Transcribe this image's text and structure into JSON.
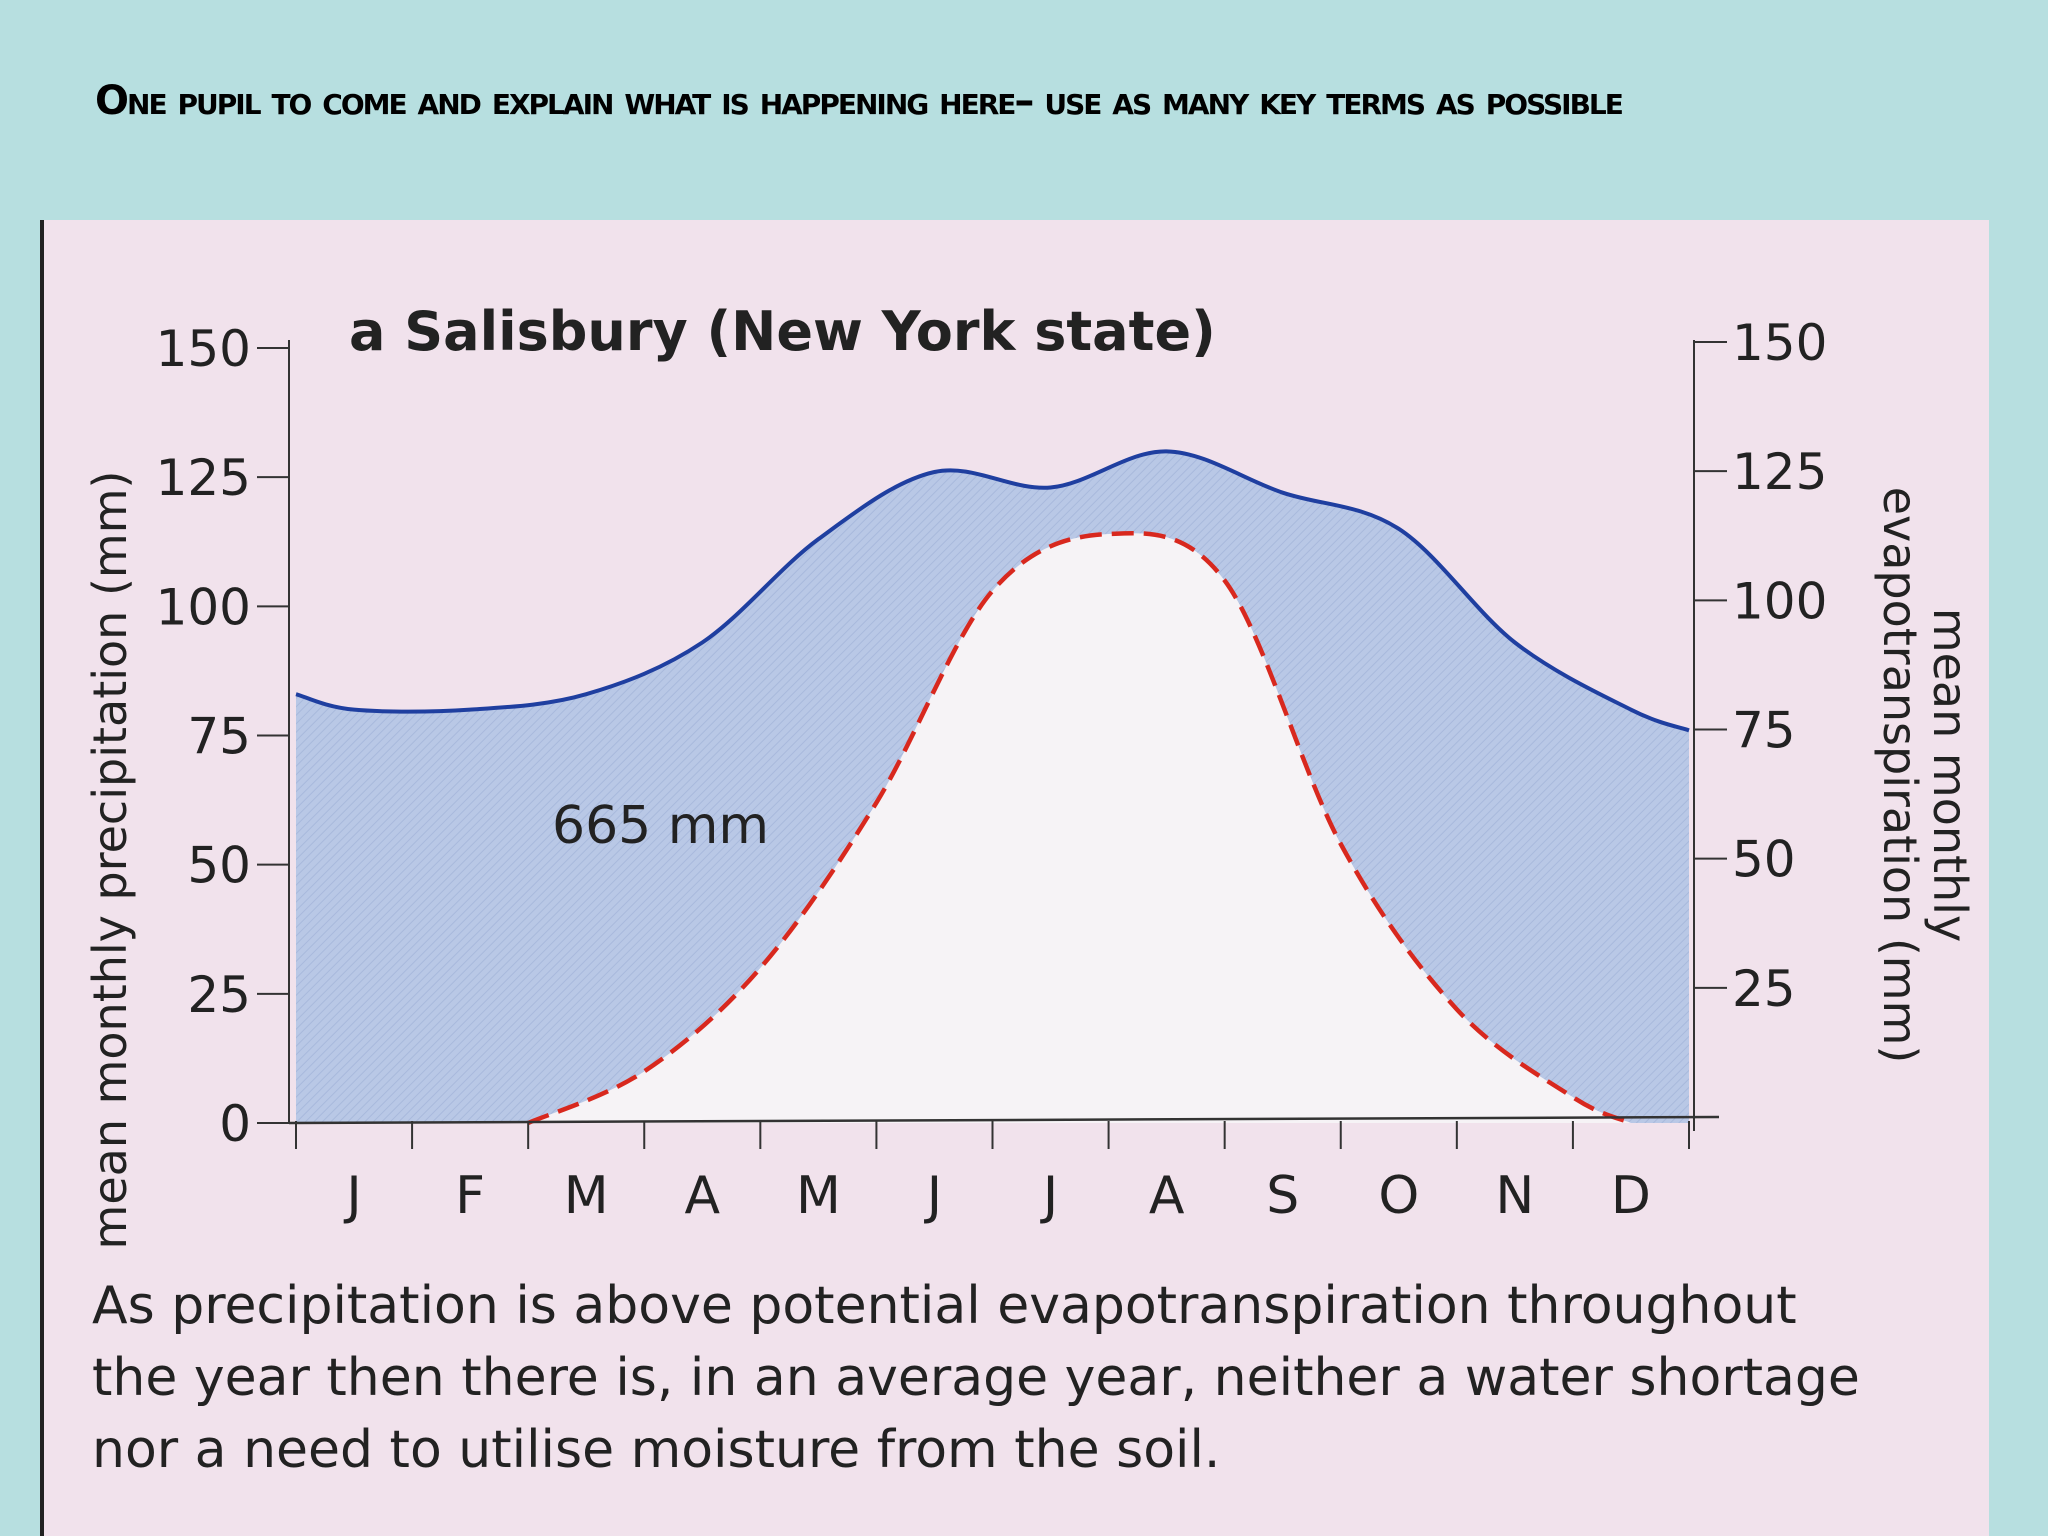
{
  "slide": {
    "heading": "One pupil to come and explain what is happening here– use as many key terms as possible"
  },
  "chart_data": {
    "type": "area",
    "title": "a Salisbury (New York state)",
    "ylabel_left": "mean monthly precipitation (mm)",
    "ylabel_right": "mean monthly evapotranspiration (mm)",
    "yticks_left": [
      "0",
      "25",
      "50",
      "75",
      "100",
      "125",
      "150"
    ],
    "yticks_right": [
      "25",
      "50",
      "75",
      "100",
      "125",
      "150"
    ],
    "ylim": [
      0,
      150
    ],
    "categories": [
      "J",
      "F",
      "M",
      "A",
      "M",
      "J",
      "J",
      "A",
      "S",
      "O",
      "N",
      "D"
    ],
    "series": [
      {
        "kind": "precipitation",
        "x": [
          0,
          0.5,
          1.5,
          2.5,
          3.5,
          4.5,
          5.5,
          6.5,
          7.5,
          8.5,
          9.5,
          10.5,
          11.5,
          12
        ],
        "values": [
          83,
          80,
          80,
          83,
          93,
          113,
          126,
          123,
          130,
          122,
          115,
          93,
          80,
          76
        ],
        "color": "#1f3fa0"
      },
      {
        "kind": "potential evapotranspiration",
        "x": [
          2,
          3,
          4,
          5,
          6,
          7,
          8,
          9,
          10,
          11,
          11.5
        ],
        "values": [
          0,
          10,
          30,
          62,
          103,
          114,
          105,
          54,
          22,
          5,
          0
        ],
        "color": "#d8281e"
      }
    ],
    "annotations": [
      "665 mm"
    ],
    "caption_lines": [
      "As precipitation is above potential evapotranspiration throughout",
      "the year then there is, in an average year, neither a water shortage",
      "nor a need to utilise moisture from the soil."
    ],
    "colors": {
      "surplus_fill": "#b9c8e6",
      "background": "#f1e2ec",
      "slide_background": "#b7dfe0"
    }
  }
}
